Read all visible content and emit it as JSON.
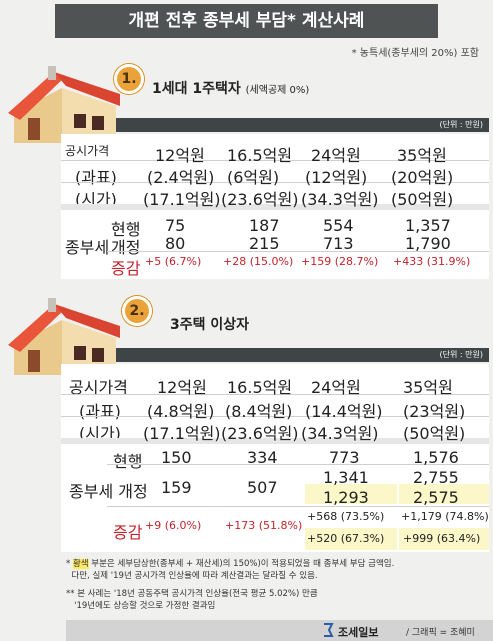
{
  "title": "개편 전후 종부세 부담* 계산사례",
  "note_top": "* 농특세(종부세의 20%) 포함",
  "section1": {
    "badge": "1.",
    "title": "1세대 1주택자",
    "subtitle": "(세액공제 0%)",
    "unit": "(단위 : 만원)",
    "row_labels": [
      "공시가격",
      "(과표)",
      "(시가)"
    ],
    "columns": [
      {
        "price": "12억원",
        "base": "(2.4억원)",
        "market": "(17.1억원)",
        "current": "75",
        "revised": "80",
        "change": "+5",
        "pct": "(6.7%)"
      },
      {
        "price": "16.5억원",
        "base": "(6억원)",
        "market": "(23.6억원)",
        "current": "187",
        "revised": "215",
        "change": "+28",
        "pct": "(15.0%)"
      },
      {
        "price": "24억원",
        "base": "(12억원)",
        "market": "(34.3억원)",
        "current": "554",
        "revised": "713",
        "change": "+159",
        "pct": "(28.7%)"
      },
      {
        "price": "35억원",
        "base": "(20억원)",
        "market": "(50억원)",
        "current": "1,357",
        "revised": "1,790",
        "change": "+433",
        "pct": "(31.9%)"
      }
    ],
    "tax_label": "종부세",
    "current_label": "현행",
    "revised_label": "개정",
    "change_label": "증감"
  },
  "section2": {
    "badge": "2.",
    "title": "3주택 이상자",
    "unit": "(단위 : 만원)",
    "row_labels": [
      "공시가격",
      "(과표)",
      "(시가)"
    ],
    "columns": [
      {
        "price": "12억원",
        "base": "(4.8억원)",
        "market": "(17.1억원)",
        "current": "150",
        "revised": "159",
        "change": "+9",
        "pct": "(6.0%)"
      },
      {
        "price": "16.5억원",
        "base": "(8.4억원)",
        "market": "(23.6억원)",
        "current": "334",
        "revised": "507",
        "change": "+173",
        "pct": "(51.8%)"
      },
      {
        "price": "24억원",
        "base": "(14.4억원)",
        "market": "(34.3억원)",
        "current": "773",
        "revised": "1,341",
        "revised_alt": "1,293",
        "change": "+568",
        "pct": "(73.5%)",
        "change_alt": "+520",
        "pct_alt": "(67.3%)"
      },
      {
        "price": "35억원",
        "base": "(23억원)",
        "market": "(50억원)",
        "current": "1,576",
        "revised": "2,755",
        "revised_alt": "2,575",
        "change": "+1,179",
        "pct": "(74.8%)",
        "change_alt": "+999",
        "pct_alt": "(63.4%)"
      }
    ],
    "tax_label": "종부세",
    "current_label": "현행",
    "revised_label": "개정",
    "change_label": "증감"
  },
  "footnotes": {
    "f1_star": "*",
    "f1_hl": "황색",
    "f1_rest": "부분은 세부담상한(종부세 + 재산세)의 150%)이 적용되었을 때 종부세 부담 금액임.",
    "f1_line2": "다만, 실제 '19년 공시가격 인상율에 따라 계산결과는 달라질 수 있음.",
    "f2_line1": "** 본 사례는 '18년 공동주택 공시가격 인상율(전국 평균 5.02%) 만큼",
    "f2_line2": "'19년에도 상승할 것으로 가정한 결과임"
  },
  "brand": "조세일보",
  "credit": "/ 그래픽 = 조혜미",
  "colors": {
    "accent": "#e9a33a",
    "banner": "#4f5354",
    "red": "#c4232b",
    "highlight": "#fbf7c9"
  }
}
